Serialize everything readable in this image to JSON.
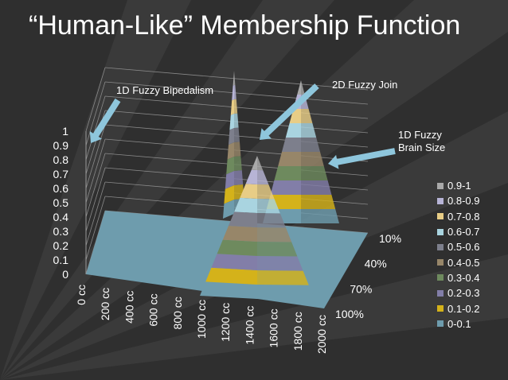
{
  "slide": {
    "title": "“Human-Like” Membership Function"
  },
  "annotations": {
    "bipedalism": "1D Fuzzy Bipedalism",
    "join": "2D Fuzzy Join",
    "brain_line1": "1D Fuzzy",
    "brain_line2": "Brain Size"
  },
  "colors": {
    "background": "#2f2f2f",
    "floor": "#6e9cad",
    "arrow": "#8ec6dc"
  },
  "chart_data": {
    "type": "surface",
    "title": "",
    "z_ticks": [
      "0",
      "0.1",
      "0.2",
      "0.3",
      "0.4",
      "0.5",
      "0.6",
      "0.7",
      "0.8",
      "0.9",
      "1"
    ],
    "x_ticks": [
      "0 cc",
      "200 cc",
      "400 cc",
      "600 cc",
      "800 cc",
      "1000 cc",
      "1200 cc",
      "1400 cc",
      "1600 cc",
      "1800 cc",
      "2000 cc"
    ],
    "y_ticks": [
      "10%",
      "40%",
      "70%",
      "100%"
    ],
    "zlim": [
      0,
      1
    ],
    "legend_position": "right",
    "series": [
      {
        "name": "0.9-1",
        "color": "#a9a9a9"
      },
      {
        "name": "0.8-0.9",
        "color": "#b7b4d6"
      },
      {
        "name": "0.7-0.8",
        "color": "#e8cd86"
      },
      {
        "name": "0.6-0.7",
        "color": "#a9d4e0"
      },
      {
        "name": "0.5-0.6",
        "color": "#7d7f8c"
      },
      {
        "name": "0.4-0.5",
        "color": "#978669"
      },
      {
        "name": "0.3-0.4",
        "color": "#6e8a5e"
      },
      {
        "name": "0.2-0.3",
        "color": "#827ea8"
      },
      {
        "name": "0.1-0.2",
        "color": "#d4b21a"
      },
      {
        "name": "0-0.1",
        "color": "#6e9cad"
      }
    ],
    "peaks": [
      {
        "label": "1D Fuzzy Bipedalism",
        "x_at": "0 cc",
        "y_at": "10%",
        "value": 1
      },
      {
        "label": "2D Fuzzy Join",
        "x_at": "1000 cc",
        "y_at": "100%",
        "value": 1
      },
      {
        "label": "1D Fuzzy Brain Size",
        "x_at": "1000 cc",
        "y_at": "10%",
        "value": 1
      }
    ]
  }
}
